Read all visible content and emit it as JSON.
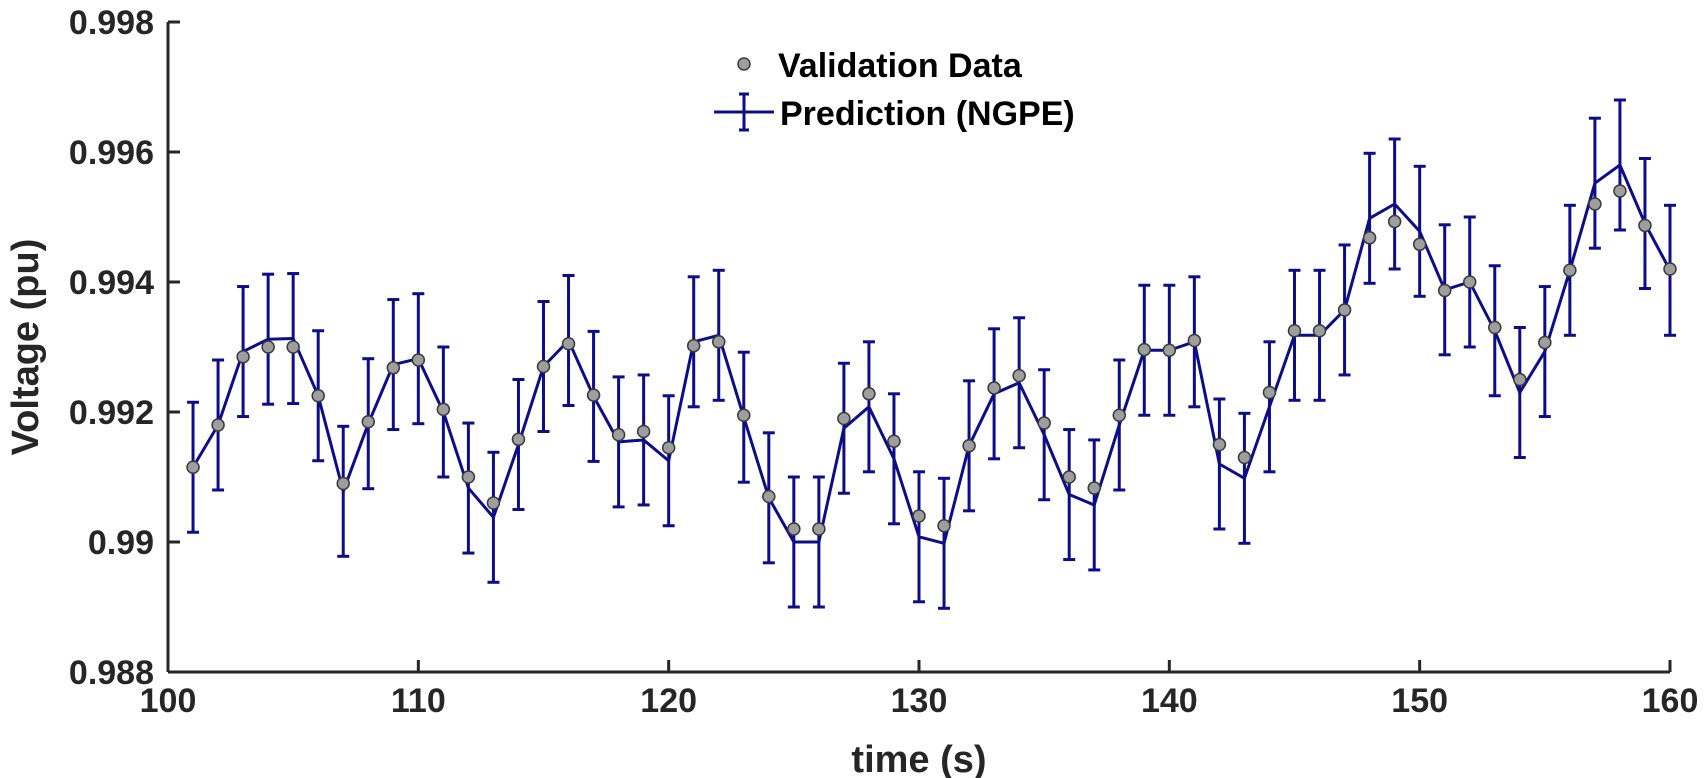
{
  "chart_data": {
    "type": "line",
    "title": "",
    "xlabel": "time (s)",
    "ylabel": "Voltage (pu)",
    "xlim": [
      100,
      160
    ],
    "ylim": [
      0.988,
      0.998
    ],
    "xticks": [
      100,
      110,
      120,
      130,
      140,
      150,
      160
    ],
    "xtick_labels": [
      "100",
      "110",
      "120",
      "130",
      "140",
      "150",
      "160"
    ],
    "yticks": [
      0.988,
      0.99,
      0.992,
      0.994,
      0.996,
      0.998
    ],
    "ytick_labels": [
      "0.988",
      "0.99",
      "0.992",
      "0.994",
      "0.996",
      "0.998"
    ],
    "grid": false,
    "legend_position": "top-center",
    "series": [
      {
        "name": "Validation Data",
        "kind": "scatter",
        "color": "#9e9e9e",
        "x": [
          101,
          102,
          103,
          104,
          105,
          106,
          107,
          108,
          109,
          110,
          111,
          112,
          113,
          114,
          115,
          116,
          117,
          118,
          119,
          120,
          121,
          122,
          123,
          124,
          125,
          126,
          127,
          128,
          129,
          130,
          131,
          132,
          133,
          134,
          135,
          136,
          137,
          138,
          139,
          140,
          141,
          142,
          143,
          144,
          145,
          146,
          147,
          148,
          149,
          150,
          151,
          152,
          153,
          154,
          155,
          156,
          157,
          158,
          159,
          160
        ],
        "values": [
          0.99115,
          0.9918,
          0.99285,
          0.993,
          0.993,
          0.99225,
          0.9909,
          0.99185,
          0.99268,
          0.9928,
          0.99204,
          0.991,
          0.9906,
          0.99158,
          0.9927,
          0.99305,
          0.99226,
          0.99165,
          0.9917,
          0.99145,
          0.99302,
          0.99308,
          0.99195,
          0.9907,
          0.9902,
          0.9902,
          0.9919,
          0.99228,
          0.99155,
          0.9904,
          0.99025,
          0.99148,
          0.99237,
          0.99256,
          0.99183,
          0.991,
          0.99083,
          0.99195,
          0.99296,
          0.99295,
          0.9931,
          0.9915,
          0.9913,
          0.9923,
          0.99325,
          0.99325,
          0.99357,
          0.99468,
          0.99493,
          0.99458,
          0.99387,
          0.994,
          0.9933,
          0.9925,
          0.99307,
          0.99418,
          0.9952,
          0.9954,
          0.99487,
          0.9942
        ]
      },
      {
        "name": "Prediction (NGPE)",
        "kind": "line-errorbar",
        "color": "#0d0d8a",
        "x": [
          101,
          102,
          103,
          104,
          105,
          106,
          107,
          108,
          109,
          110,
          111,
          112,
          113,
          114,
          115,
          116,
          117,
          118,
          119,
          120,
          121,
          122,
          123,
          124,
          125,
          126,
          127,
          128,
          129,
          130,
          131,
          132,
          133,
          134,
          135,
          136,
          137,
          138,
          139,
          140,
          141,
          142,
          143,
          144,
          145,
          146,
          147,
          148,
          149,
          150,
          151,
          152,
          153,
          154,
          155,
          156,
          157,
          158,
          159,
          160
        ],
        "values": [
          0.99115,
          0.9918,
          0.99293,
          0.99312,
          0.99313,
          0.99225,
          0.99078,
          0.99182,
          0.99273,
          0.99282,
          0.992,
          0.99083,
          0.99038,
          0.9915,
          0.9927,
          0.9931,
          0.99224,
          0.99154,
          0.99157,
          0.99125,
          0.99308,
          0.99318,
          0.99192,
          0.99068,
          0.99,
          0.99,
          0.99175,
          0.99208,
          0.99128,
          0.99008,
          0.98998,
          0.99148,
          0.99228,
          0.99245,
          0.99165,
          0.99073,
          0.99057,
          0.9918,
          0.99295,
          0.99295,
          0.99308,
          0.9912,
          0.99098,
          0.99208,
          0.99318,
          0.99318,
          0.99357,
          0.99498,
          0.9952,
          0.99478,
          0.99388,
          0.994,
          0.99325,
          0.9923,
          0.99293,
          0.99418,
          0.99552,
          0.9958,
          0.9949,
          0.99418
        ],
        "error": 0.001
      }
    ]
  }
}
